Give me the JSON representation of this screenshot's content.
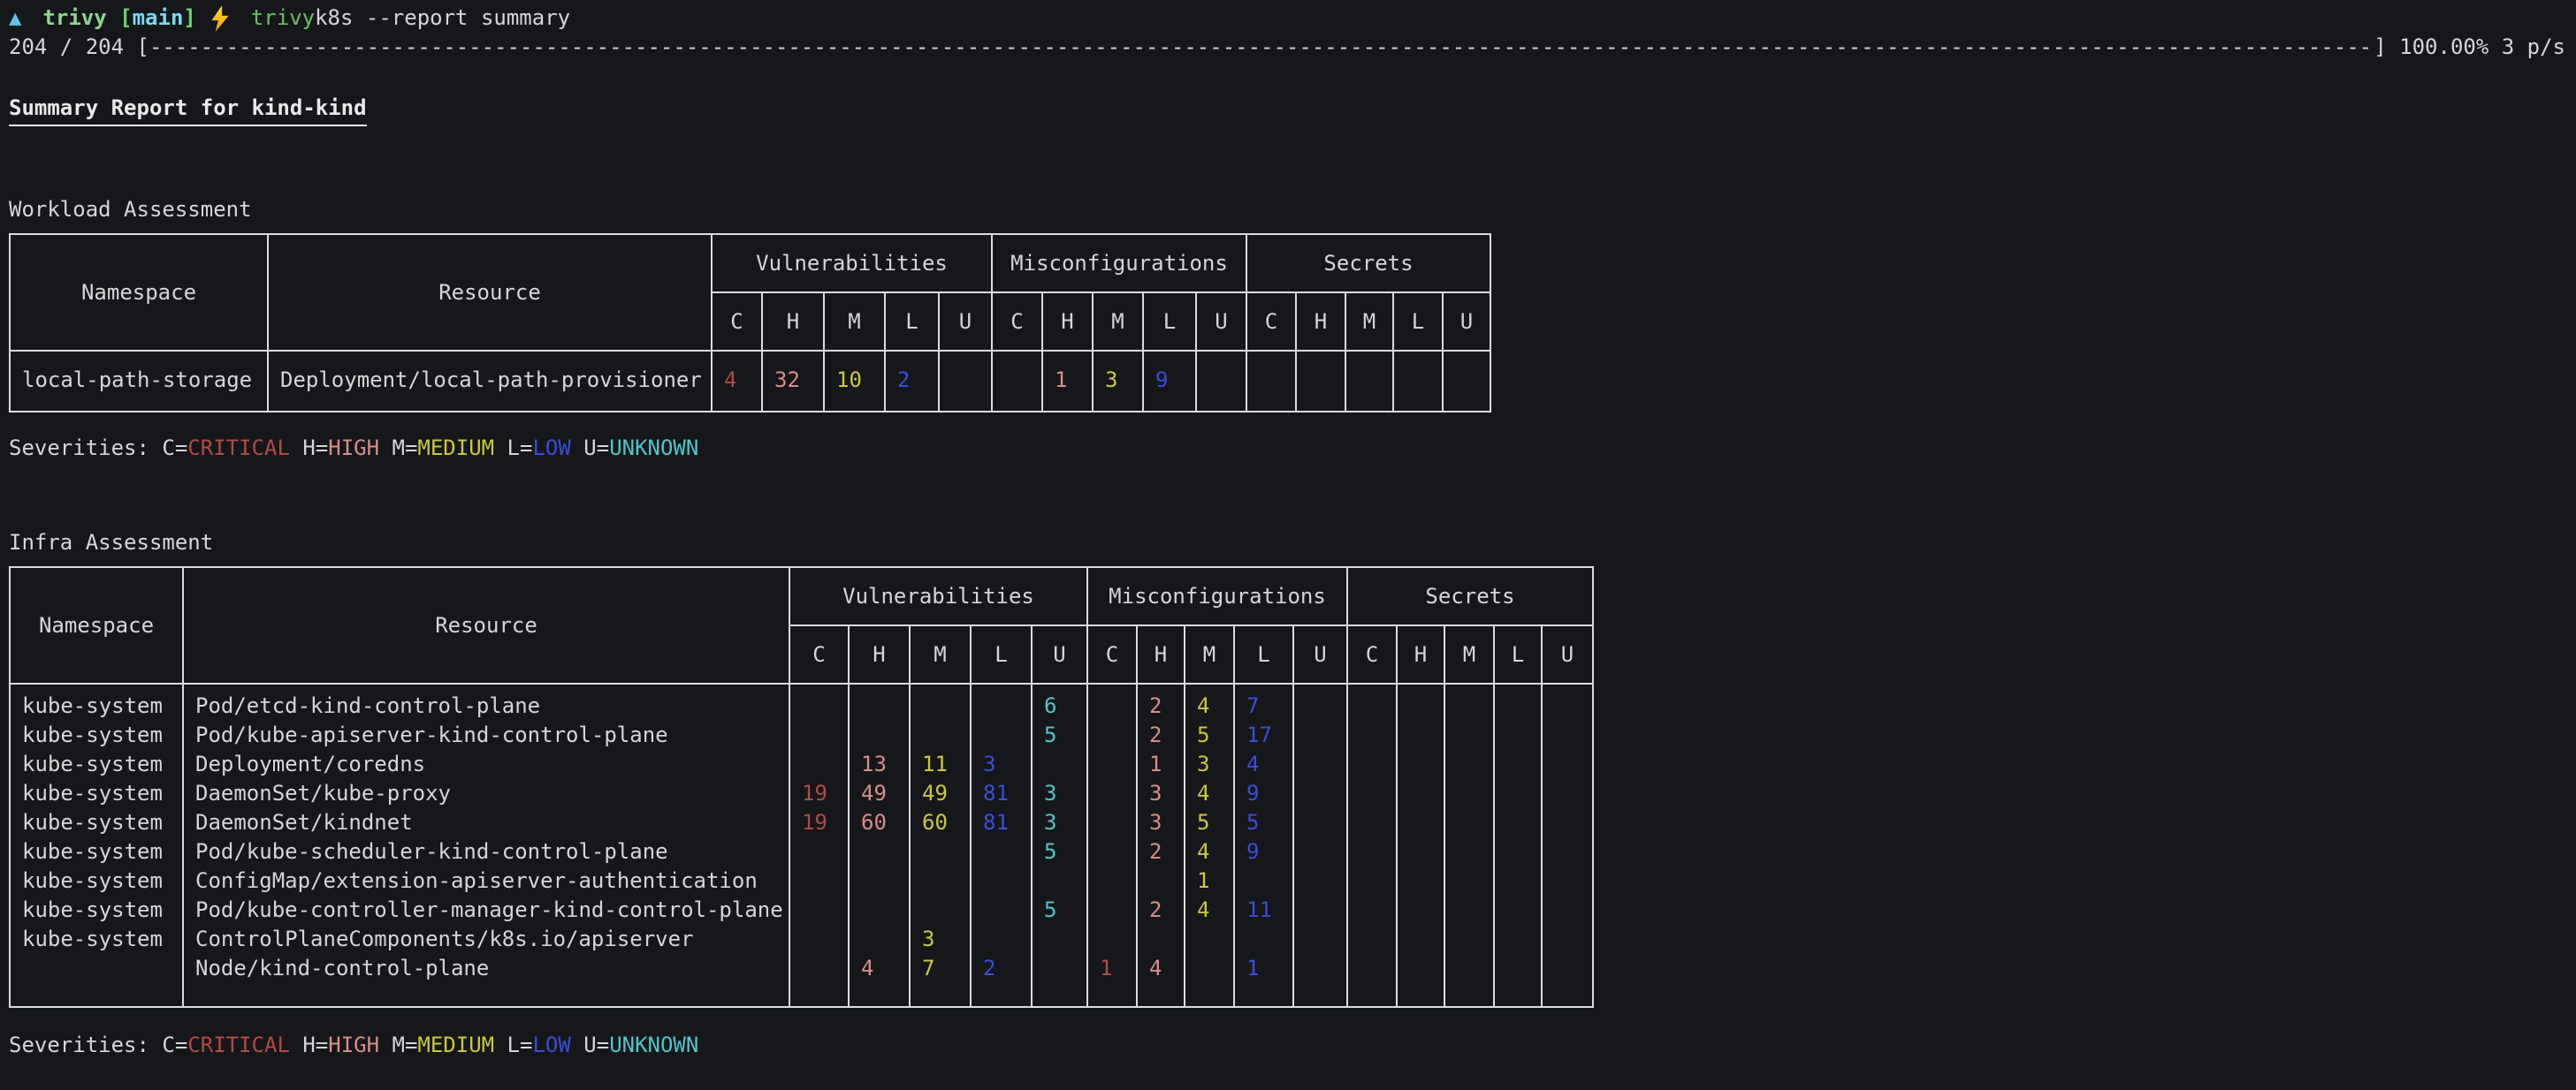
{
  "colors": {
    "background": "#15171b",
    "foreground": "#d6d6d6",
    "border": "#dcdcdc",
    "critical": "#b14b43",
    "high": "#d98d88",
    "medium": "#cbc83e",
    "low": "#3a4ed8",
    "unknown": "#52c5c9",
    "prompt_symbol": "#5ec4e8",
    "prompt_dir": "#8cd790",
    "prompt_bracket": "#6fcf6f",
    "prompt_branch": "#7ad9f0",
    "command": "#68c25e",
    "bolt_top": "#ffd93d",
    "bolt_bottom": "#f59f0a"
  },
  "terminal": {
    "prompt": {
      "symbol": "▲",
      "directory": "trivy",
      "branch_open": "[",
      "branch": "main",
      "branch_close": "]",
      "command": "trivy",
      "args": " k8s --report summary"
    },
    "progress": {
      "prefix": "204 / 204 [",
      "bar_char": "-",
      "suffix": "] 100.00% 3 p/s"
    },
    "heading": "Summary Report for kind-kind"
  },
  "severity_keys": [
    "C",
    "H",
    "M",
    "L",
    "U"
  ],
  "table_headers": {
    "namespace": "Namespace",
    "resource": "Resource",
    "groups": [
      "Vulnerabilities",
      "Misconfigurations",
      "Secrets"
    ]
  },
  "severity_legend": {
    "label": "Severities:",
    "items": [
      {
        "key": "C",
        "name": "CRITICAL",
        "sev": "critical"
      },
      {
        "key": "H",
        "name": "HIGH",
        "sev": "high"
      },
      {
        "key": "M",
        "name": "MEDIUM",
        "sev": "medium"
      },
      {
        "key": "L",
        "name": "LOW",
        "sev": "low"
      },
      {
        "key": "U",
        "name": "UNKNOWN",
        "sev": "unknown"
      }
    ]
  },
  "workload": {
    "title": "Workload Assessment",
    "rows": [
      {
        "namespace": "local-path-storage",
        "resource": "Deployment/local-path-provisioner",
        "v": [
          "4",
          "32",
          "10",
          "2",
          ""
        ],
        "m": [
          "",
          "1",
          "3",
          "9",
          ""
        ],
        "s": [
          "",
          "",
          "",
          "",
          ""
        ]
      }
    ]
  },
  "infra": {
    "title": "Infra Assessment",
    "rows": [
      {
        "namespace": "kube-system",
        "resource": "Pod/etcd-kind-control-plane",
        "v": [
          "",
          "",
          "",
          "",
          "6"
        ],
        "m": [
          "",
          "2",
          "4",
          "7",
          ""
        ],
        "s": [
          "",
          "",
          "",
          "",
          ""
        ]
      },
      {
        "namespace": "kube-system",
        "resource": "Pod/kube-apiserver-kind-control-plane",
        "v": [
          "",
          "",
          "",
          "",
          "5"
        ],
        "m": [
          "",
          "2",
          "5",
          "17",
          ""
        ],
        "s": [
          "",
          "",
          "",
          "",
          ""
        ]
      },
      {
        "namespace": "kube-system",
        "resource": "Deployment/coredns",
        "v": [
          "",
          "13",
          "11",
          "3",
          ""
        ],
        "m": [
          "",
          "1",
          "3",
          "4",
          ""
        ],
        "s": [
          "",
          "",
          "",
          "",
          ""
        ]
      },
      {
        "namespace": "kube-system",
        "resource": "DaemonSet/kube-proxy",
        "v": [
          "19",
          "49",
          "49",
          "81",
          "3"
        ],
        "m": [
          "",
          "3",
          "4",
          "9",
          ""
        ],
        "s": [
          "",
          "",
          "",
          "",
          ""
        ]
      },
      {
        "namespace": "kube-system",
        "resource": "DaemonSet/kindnet",
        "v": [
          "19",
          "60",
          "60",
          "81",
          "3"
        ],
        "m": [
          "",
          "3",
          "5",
          "5",
          ""
        ],
        "s": [
          "",
          "",
          "",
          "",
          ""
        ]
      },
      {
        "namespace": "kube-system",
        "resource": "Pod/kube-scheduler-kind-control-plane",
        "v": [
          "",
          "",
          "",
          "",
          "5"
        ],
        "m": [
          "",
          "2",
          "4",
          "9",
          ""
        ],
        "s": [
          "",
          "",
          "",
          "",
          ""
        ]
      },
      {
        "namespace": "kube-system",
        "resource": "ConfigMap/extension-apiserver-authentication",
        "v": [
          "",
          "",
          "",
          "",
          ""
        ],
        "m": [
          "",
          "",
          "1",
          "",
          ""
        ],
        "s": [
          "",
          "",
          "",
          "",
          ""
        ]
      },
      {
        "namespace": "kube-system",
        "resource": "Pod/kube-controller-manager-kind-control-plane",
        "v": [
          "",
          "",
          "",
          "",
          "5"
        ],
        "m": [
          "",
          "2",
          "4",
          "11",
          ""
        ],
        "s": [
          "",
          "",
          "",
          "",
          ""
        ]
      },
      {
        "namespace": "kube-system",
        "resource": "ControlPlaneComponents/k8s.io/apiserver",
        "v": [
          "",
          "",
          "3",
          "",
          ""
        ],
        "m": [
          "",
          "",
          "",
          "",
          ""
        ],
        "s": [
          "",
          "",
          "",
          "",
          ""
        ]
      },
      {
        "namespace": "",
        "resource": "Node/kind-control-plane",
        "v": [
          "",
          "4",
          "7",
          "2",
          ""
        ],
        "m": [
          "1",
          "4",
          "",
          "1",
          ""
        ],
        "s": [
          "",
          "",
          "",
          "",
          ""
        ]
      }
    ]
  }
}
